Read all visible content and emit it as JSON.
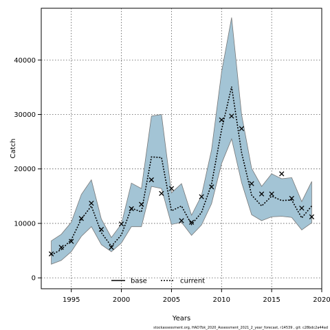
{
  "chart_data": {
    "type": "line",
    "xlabel": "Years",
    "ylabel": "Catch",
    "xlim": [
      1992,
      2020
    ],
    "ylim": [
      -2000,
      49500
    ],
    "x_ticks": [
      1995,
      2000,
      2005,
      2010,
      2015,
      2020
    ],
    "y_ticks": [
      0,
      10000,
      20000,
      30000,
      40000
    ],
    "grid": true,
    "legend_position": "bottom-center",
    "colors": {
      "band": "#a3c4d5",
      "band_edge": "#777777",
      "line": "#000000"
    },
    "confidence_band": {
      "x": [
        1993,
        1994,
        1995,
        1996,
        1997,
        1998,
        1999,
        2000,
        2001,
        2002,
        2003,
        2004,
        2005,
        2006,
        2007,
        2008,
        2009,
        2010,
        2011,
        2012,
        2013,
        2014,
        2015,
        2016,
        2017,
        2018,
        2019
      ],
      "lower": [
        2500,
        3200,
        4800,
        7600,
        9400,
        6100,
        4800,
        6400,
        9400,
        9400,
        16800,
        16400,
        9800,
        10200,
        7800,
        9700,
        13600,
        21000,
        25500,
        17500,
        11600,
        10500,
        11200,
        11300,
        11100,
        8800,
        10100
      ],
      "upper": [
        6800,
        8000,
        10200,
        15300,
        18000,
        10800,
        7400,
        9900,
        17400,
        16400,
        29700,
        30000,
        15600,
        17300,
        11500,
        15100,
        23500,
        37800,
        47800,
        30000,
        20100,
        16800,
        19100,
        18200,
        18400,
        14000,
        17700
      ]
    },
    "series": [
      {
        "name": "base",
        "style": "solid",
        "x": [],
        "y": []
      },
      {
        "name": "current",
        "style": "dotted",
        "x": [
          1993,
          1994,
          1995,
          1996,
          1997,
          1998,
          1999,
          2000,
          2001,
          2002,
          2003,
          2004,
          2005,
          2006,
          2007,
          2008,
          2009,
          2010,
          2011,
          2012,
          2013,
          2014,
          2015,
          2016,
          2017,
          2018,
          2019
        ],
        "y": [
          4200,
          5200,
          7000,
          10800,
          13200,
          8300,
          5800,
          7900,
          12800,
          12100,
          22200,
          22100,
          12300,
          13200,
          9800,
          12000,
          17200,
          27200,
          35100,
          23000,
          15200,
          13200,
          15000,
          14200,
          14300,
          11000,
          13200
        ]
      }
    ],
    "observations": {
      "marker": "x",
      "x": [
        1993,
        1994,
        1995,
        1996,
        1997,
        1998,
        1999,
        2000,
        2001,
        2002,
        2003,
        2004,
        2005,
        2006,
        2007,
        2008,
        2009,
        2010,
        2011,
        2012,
        2013,
        2014,
        2015,
        2016,
        2017,
        2018,
        2019
      ],
      "y": [
        4400,
        5600,
        6700,
        10900,
        13700,
        8900,
        5600,
        9900,
        12700,
        13500,
        18000,
        15500,
        16400,
        10500,
        10200,
        14900,
        16700,
        29000,
        29700,
        27400,
        17300,
        15400,
        15400,
        19100,
        14600,
        12800,
        11200
      ]
    },
    "footnote": "stockassessment.org, HAD7bk_2020_Assessment_2021_2_year_forecast, r14539 , git: c28bdc2a44ad"
  }
}
